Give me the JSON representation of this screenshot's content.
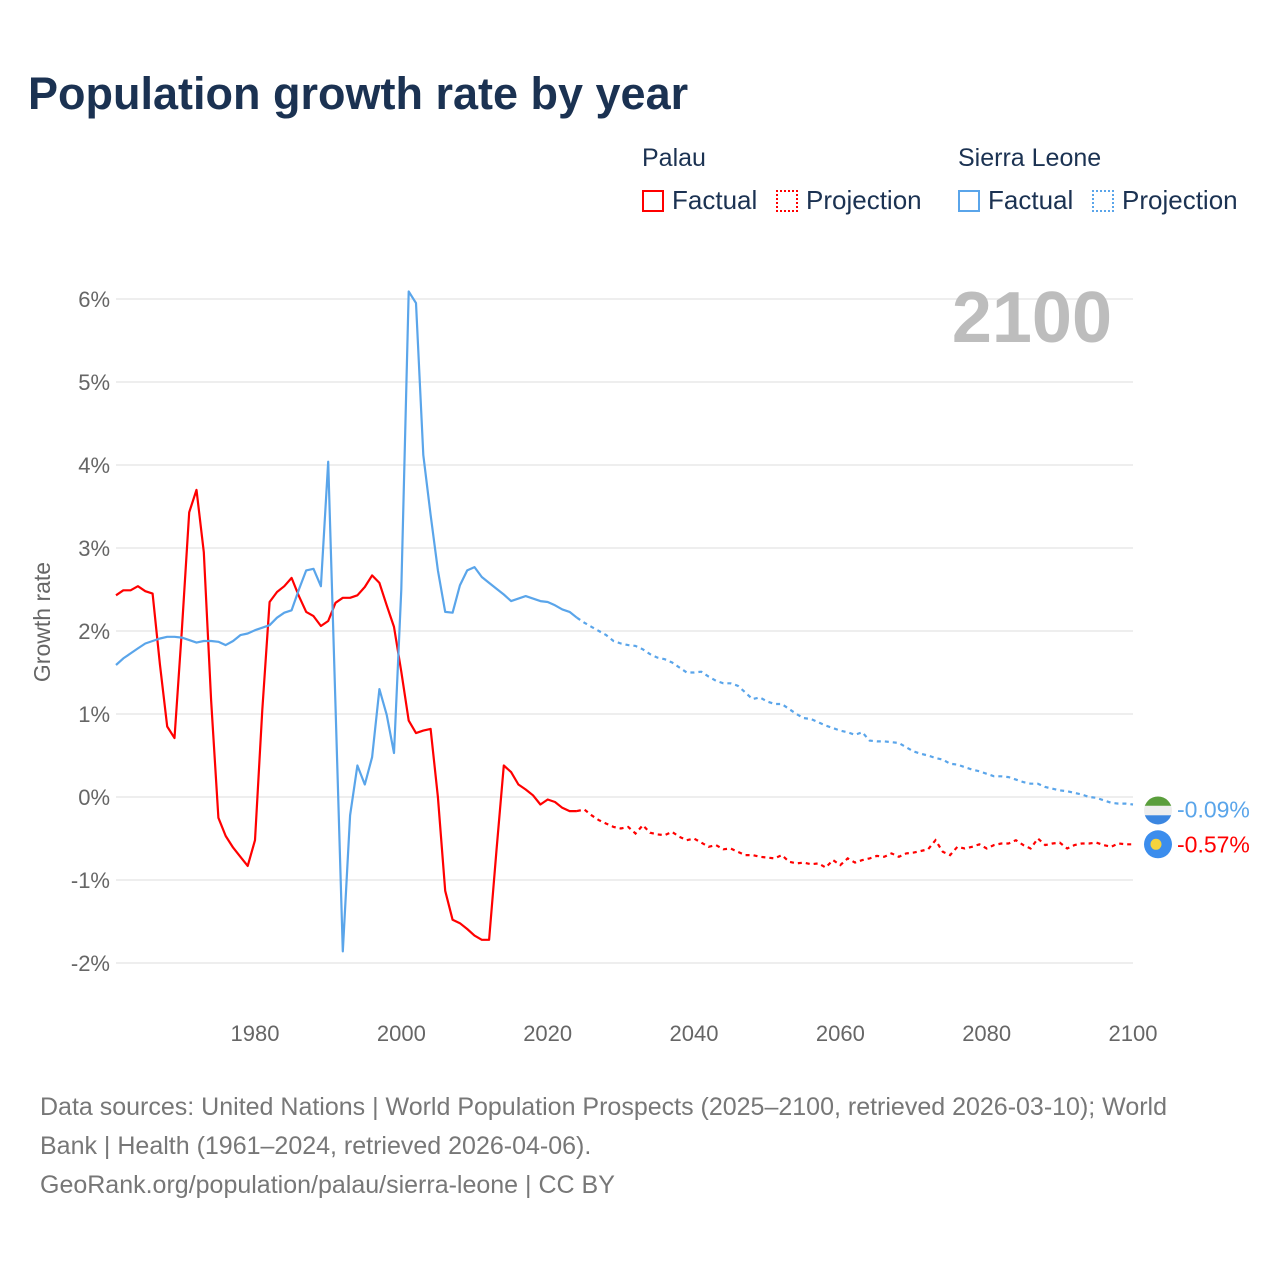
{
  "title": "Population growth rate by year",
  "legend": {
    "groups": [
      {
        "name": "Palau",
        "factual": "Factual",
        "projection": "Projection",
        "color": "#ff0000"
      },
      {
        "name": "Sierra Leone",
        "factual": "Factual",
        "projection": "Projection",
        "color": "#5aa5ea"
      }
    ]
  },
  "year_label": "2100",
  "source_lines": [
    "Data sources: United Nations | World Population Prospects (2025–2100, retrieved 2026-03-10); World",
    "Bank | Health (1961–2024, retrieved 2026-04-06).",
    "GeoRank.org/population/palau/sierra-leone | CC BY"
  ],
  "chart_data": {
    "type": "line",
    "title": "Population growth rate by year",
    "xlabel": "",
    "ylabel": "Growth rate",
    "xlim": [
      1961,
      2100
    ],
    "ylim": [
      -2.4,
      6.2
    ],
    "x_ticks": [
      1980,
      2000,
      2020,
      2040,
      2060,
      2080,
      2100
    ],
    "x_tick_labels": [
      "1980",
      "2000",
      "2020",
      "2040",
      "2060",
      "2080",
      "2100"
    ],
    "y_ticks": [
      -2,
      -1,
      0,
      1,
      2,
      3,
      4,
      5,
      6
    ],
    "y_tick_labels": [
      "-2%",
      "-1%",
      "0%",
      "1%",
      "2%",
      "3%",
      "4%",
      "5%",
      "6%"
    ],
    "grid": true,
    "legend_position": "top-right",
    "factual_start": 1961,
    "projection_start": 2025,
    "series": [
      {
        "name": "Palau",
        "color": "#ff0000",
        "end_label": "-0.57%",
        "factual": [
          2.43,
          2.49,
          2.49,
          2.54,
          2.48,
          2.45,
          1.6,
          0.85,
          0.71,
          2.0,
          3.43,
          3.7,
          2.95,
          1.17,
          -0.25,
          -0.47,
          -0.61,
          -0.72,
          -0.83,
          -0.52,
          1.05,
          2.35,
          2.47,
          2.54,
          2.64,
          2.42,
          2.23,
          2.18,
          2.06,
          2.12,
          2.34,
          2.4,
          2.4,
          2.43,
          2.53,
          2.67,
          2.58,
          2.31,
          2.05,
          1.51,
          0.92,
          0.77,
          0.8,
          0.82,
          0.0,
          -1.13,
          -1.48,
          -1.52,
          -1.59,
          -1.67,
          -1.72,
          -1.72,
          -0.64,
          0.38,
          0.3,
          0.15,
          0.09,
          0.02,
          -0.09,
          -0.03,
          -0.06,
          -0.13,
          -0.17,
          -0.17
        ],
        "projection": [
          -0.15,
          -0.22,
          -0.28,
          -0.32,
          -0.36,
          -0.38,
          -0.36,
          -0.44,
          -0.34,
          -0.43,
          -0.45,
          -0.46,
          -0.42,
          -0.48,
          -0.52,
          -0.5,
          -0.55,
          -0.6,
          -0.58,
          -0.63,
          -0.62,
          -0.66,
          -0.7,
          -0.7,
          -0.72,
          -0.73,
          -0.74,
          -0.7,
          -0.78,
          -0.8,
          -0.79,
          -0.81,
          -0.8,
          -0.85,
          -0.76,
          -0.82,
          -0.74,
          -0.79,
          -0.76,
          -0.74,
          -0.71,
          -0.72,
          -0.68,
          -0.72,
          -0.68,
          -0.67,
          -0.65,
          -0.63,
          -0.52,
          -0.66,
          -0.7,
          -0.6,
          -0.62,
          -0.6,
          -0.57,
          -0.62,
          -0.58,
          -0.56,
          -0.56,
          -0.52,
          -0.58,
          -0.62,
          -0.5,
          -0.58,
          -0.56,
          -0.55,
          -0.62,
          -0.58,
          -0.56,
          -0.56,
          -0.55,
          -0.58,
          -0.6,
          -0.56,
          -0.57,
          -0.57
        ]
      },
      {
        "name": "Sierra Leone",
        "color": "#5aa5ea",
        "end_label": "-0.09%",
        "factual": [
          1.59,
          1.67,
          1.73,
          1.79,
          1.85,
          1.88,
          1.91,
          1.93,
          1.93,
          1.92,
          1.89,
          1.86,
          1.88,
          1.88,
          1.87,
          1.83,
          1.88,
          1.95,
          1.97,
          2.01,
          2.04,
          2.07,
          2.16,
          2.22,
          2.25,
          2.5,
          2.73,
          2.75,
          2.54,
          4.04,
          1.1,
          -1.86,
          -0.22,
          0.38,
          0.15,
          0.48,
          1.3,
          0.99,
          0.53,
          2.5,
          6.09,
          5.95,
          4.12,
          3.4,
          2.73,
          2.23,
          2.22,
          2.55,
          2.73,
          2.77,
          2.65,
          2.58,
          2.51,
          2.44,
          2.36,
          2.39,
          2.42,
          2.39,
          2.36,
          2.35,
          2.31,
          2.26,
          2.23,
          2.16
        ],
        "projection": [
          2.1,
          2.05,
          2.0,
          1.95,
          1.88,
          1.85,
          1.83,
          1.82,
          1.78,
          1.72,
          1.68,
          1.66,
          1.62,
          1.56,
          1.5,
          1.5,
          1.51,
          1.45,
          1.4,
          1.37,
          1.37,
          1.34,
          1.26,
          1.18,
          1.2,
          1.15,
          1.12,
          1.12,
          1.06,
          1.0,
          0.95,
          0.94,
          0.9,
          0.86,
          0.83,
          0.8,
          0.78,
          0.75,
          0.78,
          0.68,
          0.67,
          0.67,
          0.66,
          0.65,
          0.6,
          0.55,
          0.52,
          0.5,
          0.47,
          0.45,
          0.4,
          0.39,
          0.36,
          0.33,
          0.31,
          0.28,
          0.25,
          0.25,
          0.24,
          0.21,
          0.18,
          0.16,
          0.16,
          0.12,
          0.1,
          0.08,
          0.07,
          0.05,
          0.03,
          0.0,
          -0.01,
          -0.04,
          -0.07,
          -0.08,
          -0.08,
          -0.09
        ]
      }
    ]
  }
}
